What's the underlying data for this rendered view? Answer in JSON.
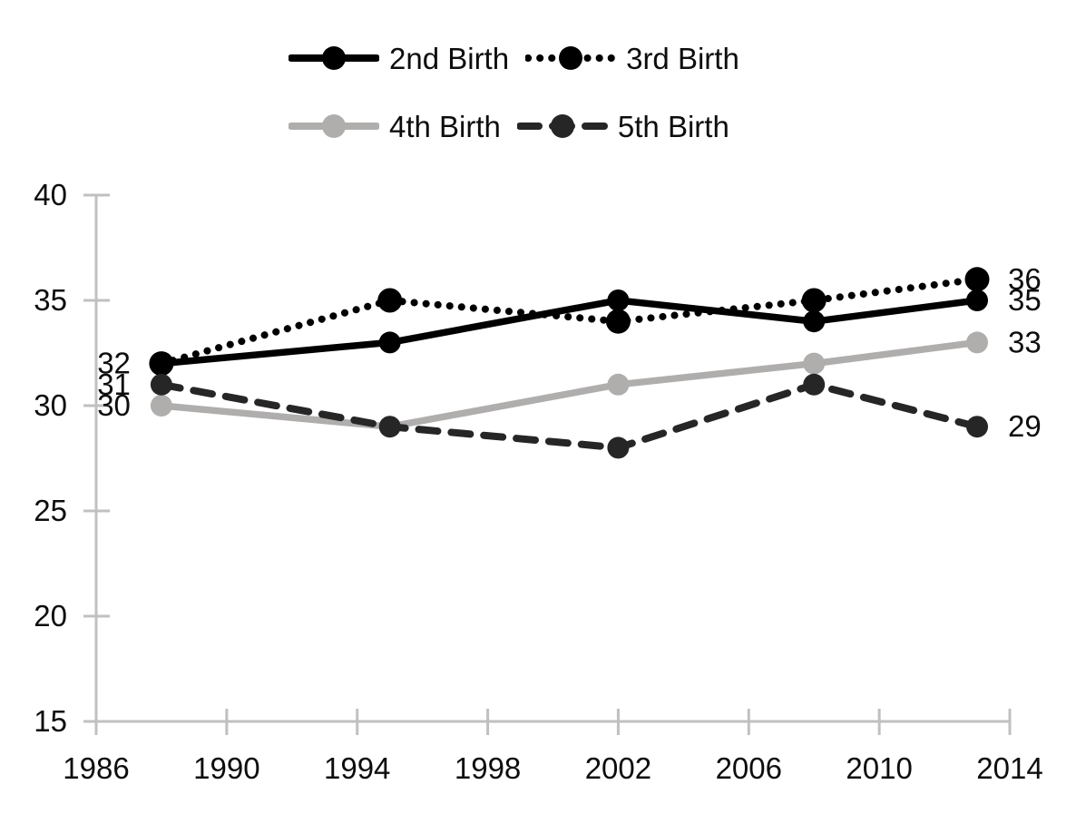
{
  "page": {
    "background": "#ffffff"
  },
  "chart_data": {
    "type": "line",
    "title": "",
    "xlabel": "",
    "ylabel": "",
    "x": [
      1988,
      1995,
      2002,
      2008,
      2013
    ],
    "x_axis": {
      "min": 1986,
      "max": 2014,
      "ticks": [
        1986,
        1990,
        1994,
        1998,
        2002,
        2006,
        2010,
        2014
      ]
    },
    "y_axis": {
      "min": 15,
      "max": 40,
      "ticks": [
        15,
        20,
        25,
        30,
        35,
        40
      ]
    },
    "grid": false,
    "legend_position": "top",
    "axis_color": "#c0c0c0",
    "text_color": "#0d0d0d",
    "series": [
      {
        "name": "2nd Birth",
        "dash": "solid",
        "color": "#000000",
        "values": [
          32,
          33,
          35,
          34,
          35
        ],
        "start_label": "32",
        "end_label": "35"
      },
      {
        "name": "3rd Birth",
        "dash": "dotted",
        "color": "#000000",
        "values": [
          32,
          35,
          34,
          35,
          36
        ],
        "start_label": "",
        "end_label": "36"
      },
      {
        "name": "4th Birth",
        "dash": "solid",
        "color": "#b0adad",
        "values": [
          30,
          29,
          31,
          32,
          33
        ],
        "start_label": "30",
        "end_label": "33"
      },
      {
        "name": "5th Birth",
        "dash": "dashed",
        "color": "#262626",
        "values": [
          31,
          29,
          28,
          31,
          29
        ],
        "start_label": "31",
        "end_label": "29"
      }
    ]
  }
}
